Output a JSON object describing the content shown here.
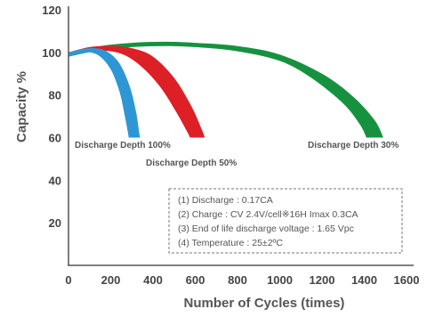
{
  "chart_data": {
    "type": "area",
    "xlabel": "Number of Cycles (times)",
    "ylabel": "Capacity %",
    "xlim": [
      0,
      1600
    ],
    "ylim": [
      0,
      120
    ],
    "x_ticks": [
      "0",
      "200",
      "400",
      "600",
      "800",
      "1000",
      "1200",
      "1400",
      "1600"
    ],
    "y_ticks": [
      "20",
      "40",
      "60",
      "80",
      "100",
      "120"
    ],
    "grid": false,
    "series": [
      {
        "name": "Discharge Depth 30%",
        "color": "#16923f",
        "upper": [
          [
            0,
            100
          ],
          [
            150,
            103
          ],
          [
            300,
            104.5
          ],
          [
            450,
            105
          ],
          [
            600,
            104.5
          ],
          [
            800,
            103
          ],
          [
            1000,
            99
          ],
          [
            1200,
            90
          ],
          [
            1350,
            79
          ],
          [
            1450,
            68
          ],
          [
            1490,
            60
          ]
        ],
        "lower": [
          [
            0,
            98
          ],
          [
            150,
            101
          ],
          [
            300,
            102.5
          ],
          [
            450,
            103
          ],
          [
            600,
            102.5
          ],
          [
            800,
            100.5
          ],
          [
            1000,
            96
          ],
          [
            1150,
            88
          ],
          [
            1300,
            76
          ],
          [
            1380,
            66
          ],
          [
            1410,
            60
          ]
        ]
      },
      {
        "name": "Discharge Depth 50%",
        "color": "#dd1f26",
        "upper": [
          [
            0,
            100
          ],
          [
            100,
            102.5
          ],
          [
            200,
            103
          ],
          [
            300,
            102
          ],
          [
            400,
            98
          ],
          [
            500,
            88
          ],
          [
            580,
            75
          ],
          [
            630,
            64
          ],
          [
            645,
            60
          ]
        ],
        "lower": [
          [
            0,
            98
          ],
          [
            100,
            100.5
          ],
          [
            200,
            100.5
          ],
          [
            280,
            98
          ],
          [
            360,
            92
          ],
          [
            440,
            83
          ],
          [
            510,
            72
          ],
          [
            560,
            63
          ],
          [
            575,
            60
          ]
        ]
      },
      {
        "name": "Discharge Depth 100%",
        "color": "#2f96d6",
        "upper": [
          [
            0,
            100
          ],
          [
            60,
            101.5
          ],
          [
            120,
            102
          ],
          [
            180,
            100.5
          ],
          [
            240,
            95
          ],
          [
            290,
            84
          ],
          [
            320,
            72
          ],
          [
            335,
            62
          ],
          [
            340,
            60
          ]
        ],
        "lower": [
          [
            0,
            98
          ],
          [
            60,
            99.5
          ],
          [
            100,
            100
          ],
          [
            150,
            98
          ],
          [
            200,
            92
          ],
          [
            240,
            82
          ],
          [
            265,
            71
          ],
          [
            280,
            63
          ],
          [
            285,
            60
          ]
        ]
      }
    ],
    "notes": [
      "(1) Discharge : 0.17CA",
      "(2) Charge : CV 2.4V/cell※16H Imax 0.3CA",
      "(3) End of life discharge voltage : 1.65 Vpc",
      "(4) Temperature : 25±2ºC"
    ]
  }
}
